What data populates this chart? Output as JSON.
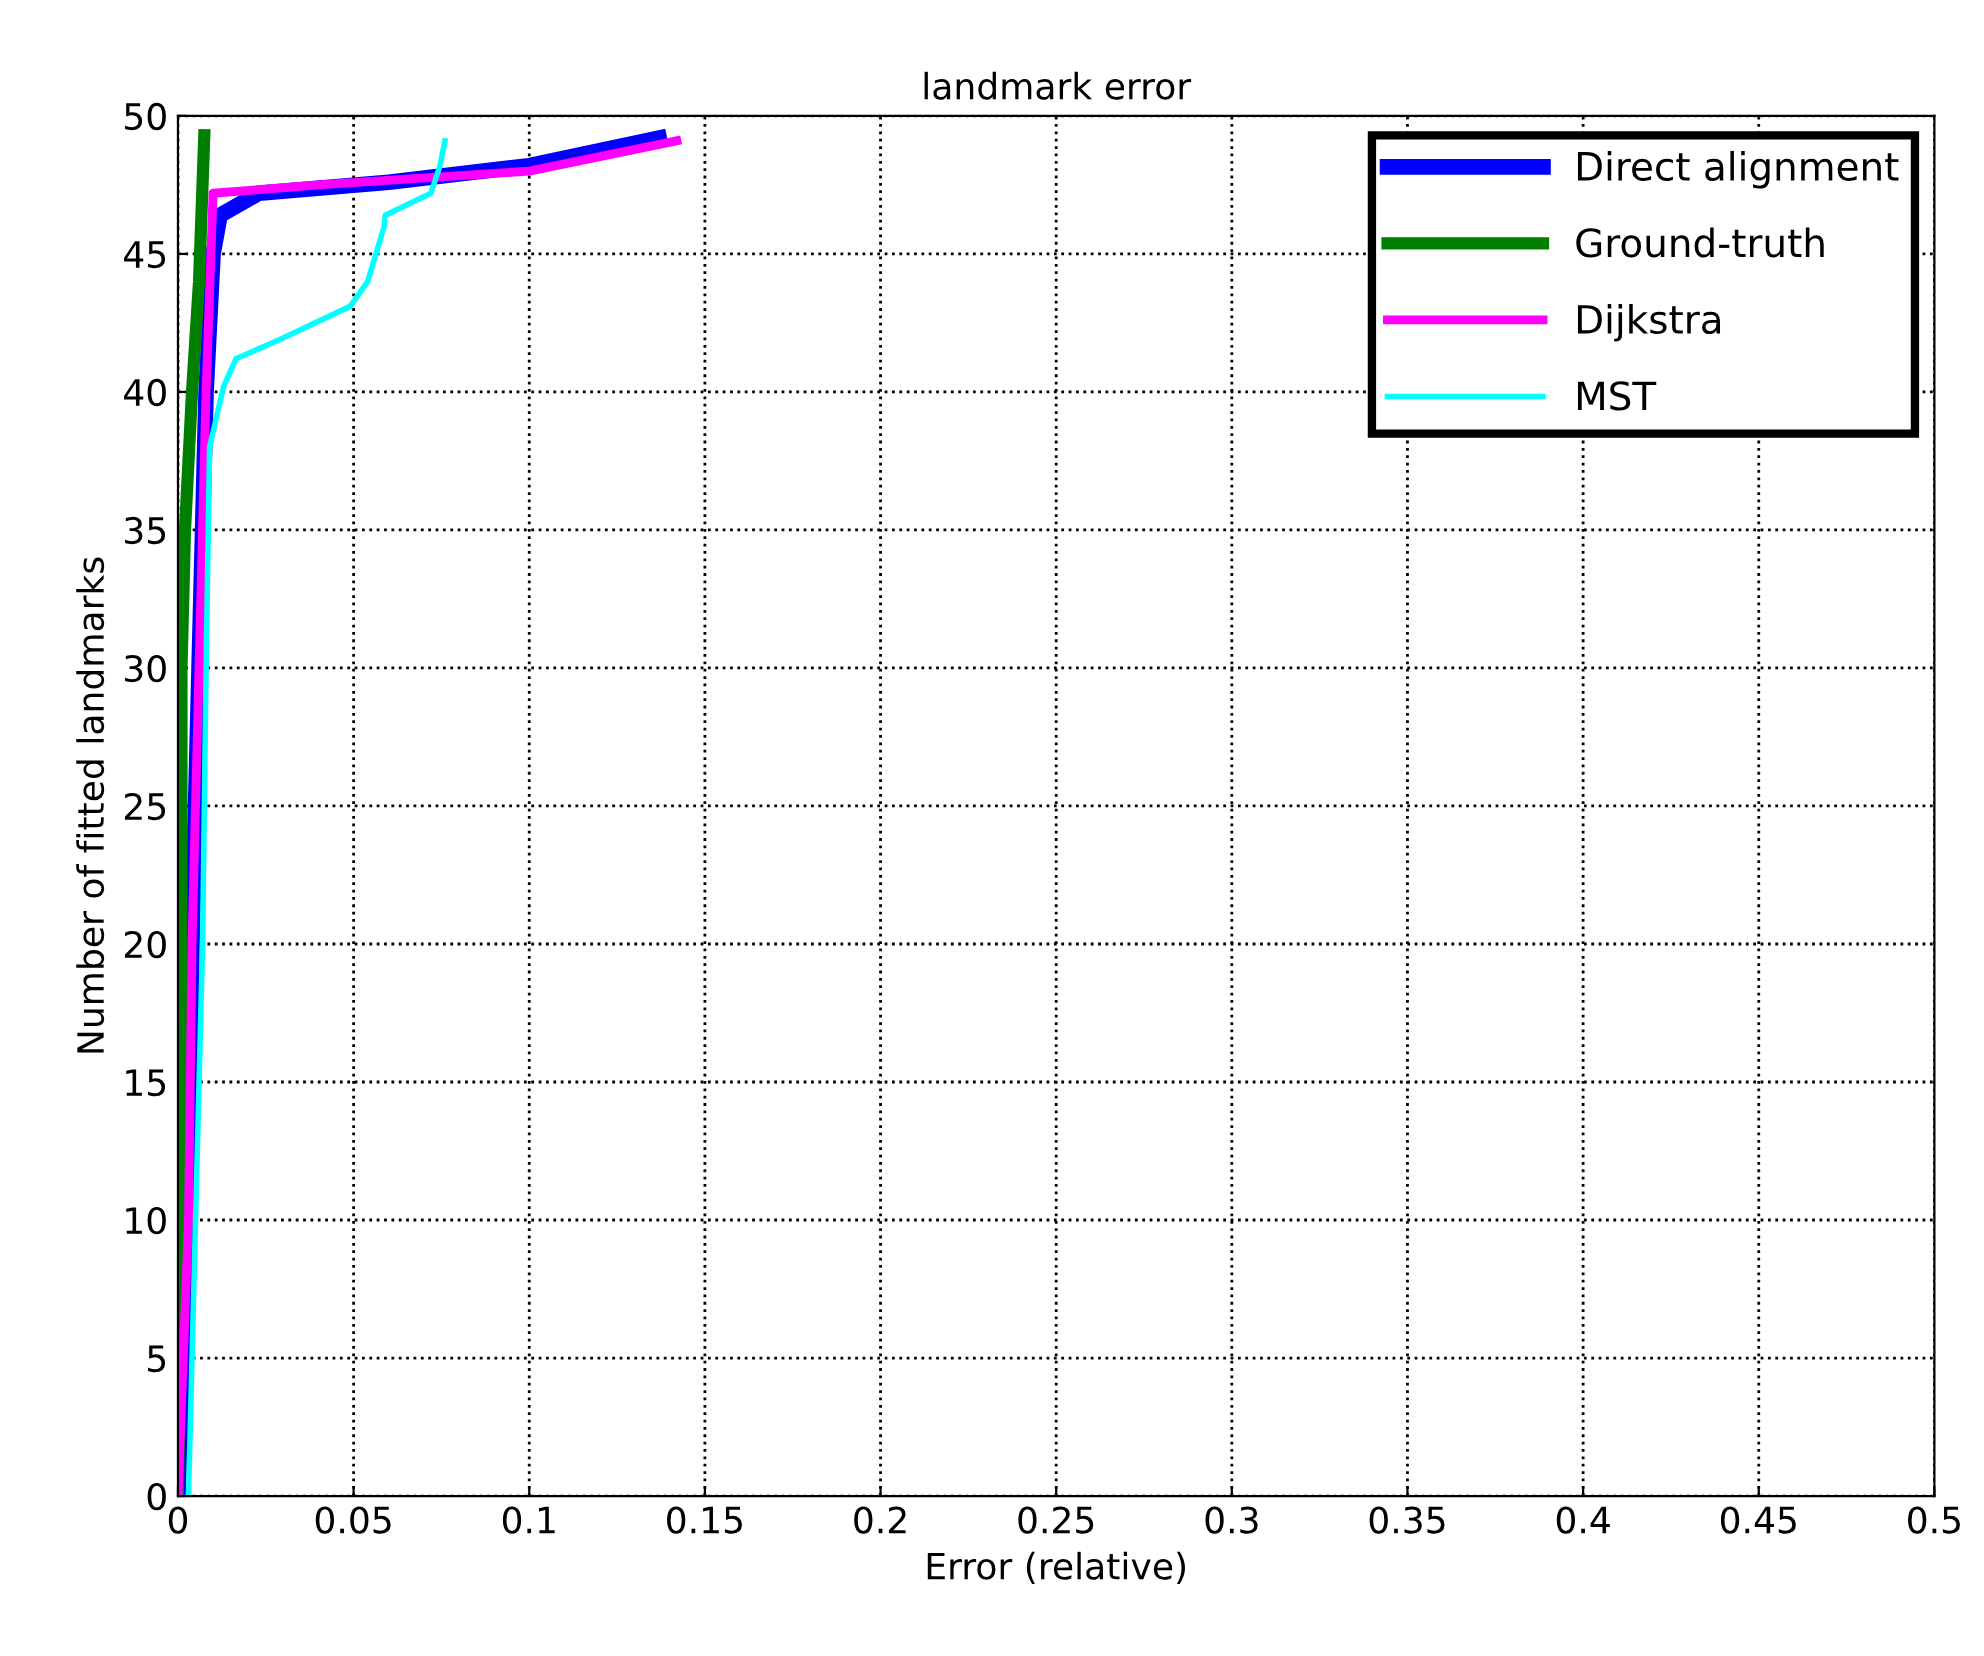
{
  "chart_data": {
    "type": "line",
    "title": "landmark error",
    "xlabel": "Error (relative)",
    "ylabel": "Number of fitted landmarks",
    "xlim": [
      0,
      0.5
    ],
    "ylim": [
      0,
      50
    ],
    "xticks": [
      0,
      0.05,
      0.1,
      0.15,
      0.2,
      0.25,
      0.3,
      0.35,
      0.4,
      0.45,
      0.5
    ],
    "yticks": [
      0,
      5,
      10,
      15,
      20,
      25,
      30,
      35,
      40,
      45,
      50
    ],
    "grid": true,
    "legend": "top right",
    "line_style": "solid",
    "marker": "none",
    "series": [
      {
        "name": "Direct alignment",
        "color": "#0000ff",
        "x": [
          0,
          0.003,
          0.004,
          0.006,
          0.008,
          0.01,
          0.012,
          0.023,
          0.06,
          0.1,
          0.137
        ],
        "values": [
          0,
          10,
          20,
          30,
          40,
          45,
          46.4,
          47.2,
          47.6,
          48.2,
          49.2
        ]
      },
      {
        "name": "Ground-truth",
        "color": "#008000",
        "x": [
          0,
          0.001,
          0.001,
          0.002,
          0.004,
          0.006,
          0.0075
        ],
        "values": [
          0,
          10,
          30,
          35,
          40,
          44,
          49.3
        ]
      },
      {
        "name": "Dijkstra",
        "color": "#ff00ff",
        "x": [
          0,
          0.003,
          0.004,
          0.006,
          0.008,
          0.01,
          0.04,
          0.1,
          0.142
        ],
        "values": [
          0,
          10,
          20,
          30,
          40,
          47.2,
          47.5,
          48,
          49.1
        ]
      },
      {
        "name": "MST",
        "color": "#00ffff",
        "x": [
          0.003,
          0.005,
          0.007,
          0.008,
          0.009,
          0.013,
          0.0165,
          0.029,
          0.049,
          0.054,
          0.0587,
          0.059,
          0.072,
          0.0746,
          0.076
        ],
        "values": [
          0,
          10,
          20,
          30,
          38,
          40.2,
          41.2,
          41.9,
          43.1,
          44,
          46,
          46.4,
          47.2,
          48.2,
          49.1
        ]
      }
    ]
  }
}
